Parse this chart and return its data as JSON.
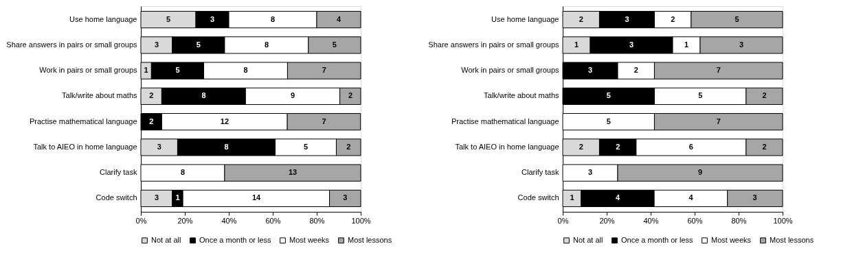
{
  "chart_data": [
    {
      "type": "bar",
      "orientation": "horizontal",
      "stacked": true,
      "legend": "bottom",
      "grid": false,
      "categories": [
        "Use home language",
        "Share answers in pairs or small groups",
        "Work in pairs or small groups",
        "Talk/write about maths",
        "Practise mathematical language",
        "Talk to AIEO in home language",
        "Clarify task",
        "Code switch"
      ],
      "xlim": [
        0,
        100
      ],
      "xticks": [
        {
          "value": 0,
          "label": "0%"
        },
        {
          "value": 20,
          "label": "20%"
        },
        {
          "value": 40,
          "label": "40%"
        },
        {
          "value": 60,
          "label": "60%"
        },
        {
          "value": 80,
          "label": "80%"
        },
        {
          "value": 100,
          "label": "100%"
        }
      ],
      "series": [
        {
          "name": "Not at all",
          "color": "#d9d9d9",
          "values": [
            25,
            14.3,
            4.8,
            9.5,
            0,
            16.7,
            0,
            14.3
          ]
        },
        {
          "name": "Once a month or less",
          "color": "#000000",
          "values": [
            15,
            23.8,
            23.8,
            38.1,
            9.5,
            44.4,
            0,
            4.8
          ]
        },
        {
          "name": "Most weeks",
          "color": "#ffffff",
          "values": [
            40,
            38.1,
            38.1,
            42.9,
            57.1,
            27.8,
            38.1,
            66.7
          ]
        },
        {
          "name": "Most lessons",
          "color": "#a6a6a6",
          "values": [
            20,
            23.8,
            33.3,
            9.5,
            33.3,
            11.1,
            61.9,
            14.2
          ]
        }
      ],
      "annotations": [
        {
          "text": "5",
          "x": 12.5,
          "y": "Use home language"
        },
        {
          "text": "3",
          "x": 32.5,
          "y": "Use home language"
        },
        {
          "text": "8",
          "x": 60,
          "y": "Use home language"
        },
        {
          "text": "4",
          "x": 90,
          "y": "Use home language"
        },
        {
          "text": "3",
          "x": 7.2,
          "y": "Share answers in pairs or small groups"
        },
        {
          "text": "5",
          "x": 26.2,
          "y": "Share answers in pairs or small groups"
        },
        {
          "text": "8",
          "x": 57.2,
          "y": "Share answers in pairs or small groups"
        },
        {
          "text": "5",
          "x": 88.1,
          "y": "Share answers in pairs or small groups"
        },
        {
          "text": "1",
          "x": 2.4,
          "y": "Work in pairs or small groups"
        },
        {
          "text": "5",
          "x": 16.7,
          "y": "Work in pairs or small groups"
        },
        {
          "text": "8",
          "x": 47.7,
          "y": "Work in pairs or small groups"
        },
        {
          "text": "7",
          "x": 83.4,
          "y": "Work in pairs or small groups"
        },
        {
          "text": "2",
          "x": 4.8,
          "y": "Talk/write about maths"
        },
        {
          "text": "8",
          "x": 28.6,
          "y": "Talk/write about maths"
        },
        {
          "text": "9",
          "x": 69.1,
          "y": "Talk/write about maths"
        },
        {
          "text": "2",
          "x": 95.3,
          "y": "Talk/write about maths"
        },
        {
          "text": "2",
          "x": 4.8,
          "y": "Practise mathematical language"
        },
        {
          "text": "12",
          "x": 38.1,
          "y": "Practise mathematical language"
        },
        {
          "text": "7",
          "x": 83.3,
          "y": "Practise mathematical language"
        },
        {
          "text": "3",
          "x": 8.4,
          "y": "Talk to AIEO in home language"
        },
        {
          "text": "8",
          "x": 38.9,
          "y": "Talk to AIEO in home language"
        },
        {
          "text": "5",
          "x": 75,
          "y": "Talk to AIEO in home language"
        },
        {
          "text": "2",
          "x": 94.5,
          "y": "Talk to AIEO in home language"
        },
        {
          "text": "8",
          "x": 19.1,
          "y": "Clarify task"
        },
        {
          "text": "13",
          "x": 69.1,
          "y": "Clarify task"
        },
        {
          "text": "3",
          "x": 7.2,
          "y": "Code switch"
        },
        {
          "text": "1",
          "x": 16.7,
          "y": "Code switch"
        },
        {
          "text": "14",
          "x": 52.5,
          "y": "Code switch"
        },
        {
          "text": "3",
          "x": 92.9,
          "y": "Code switch"
        }
      ]
    },
    {
      "type": "bar",
      "orientation": "horizontal",
      "stacked": true,
      "legend": "bottom",
      "grid": false,
      "categories": [
        "Use home language",
        "Share answers in pairs or small groups",
        "Work in pairs or small groups",
        "Talk/write about maths",
        "Practise mathematical language",
        "Talk to AIEO in home language",
        "Clarify task",
        "Code switch"
      ],
      "xlim": [
        0,
        100
      ],
      "xticks": [
        {
          "value": 0,
          "label": "0%"
        },
        {
          "value": 20,
          "label": "20%"
        },
        {
          "value": 40,
          "label": "40%"
        },
        {
          "value": 60,
          "label": "60%"
        },
        {
          "value": 80,
          "label": "80%"
        },
        {
          "value": 100,
          "label": "100%"
        }
      ],
      "series": [
        {
          "name": "Not at all",
          "color": "#d9d9d9",
          "values": [
            16.7,
            12.5,
            0,
            0,
            0,
            16.7,
            0,
            8.3
          ]
        },
        {
          "name": "Once a month or less",
          "color": "#000000",
          "values": [
            25,
            37.5,
            25,
            41.7,
            0,
            16.7,
            0,
            33.3
          ]
        },
        {
          "name": "Most weeks",
          "color": "#ffffff",
          "values": [
            16.7,
            12.5,
            16.7,
            41.7,
            41.7,
            50,
            25,
            33.3
          ]
        },
        {
          "name": "Most lessons",
          "color": "#a6a6a6",
          "values": [
            41.6,
            37.5,
            58.3,
            16.6,
            58.3,
            16.6,
            75,
            25.1
          ]
        }
      ],
      "annotations": [
        {
          "text": "2",
          "x": 8.4,
          "y": "Use home language"
        },
        {
          "text": "3",
          "x": 29.2,
          "y": "Use home language"
        },
        {
          "text": "2",
          "x": 50.1,
          "y": "Use home language"
        },
        {
          "text": "5",
          "x": 79.2,
          "y": "Use home language"
        },
        {
          "text": "1",
          "x": 6.3,
          "y": "Share answers in pairs or small groups"
        },
        {
          "text": "3",
          "x": 31.3,
          "y": "Share answers in pairs or small groups"
        },
        {
          "text": "1",
          "x": 56.3,
          "y": "Share answers in pairs or small groups"
        },
        {
          "text": "3",
          "x": 81.3,
          "y": "Share answers in pairs or small groups"
        },
        {
          "text": "3",
          "x": 12.5,
          "y": "Work in pairs or small groups"
        },
        {
          "text": "2",
          "x": 33.4,
          "y": "Work in pairs or small groups"
        },
        {
          "text": "7",
          "x": 70.9,
          "y": "Work in pairs or small groups"
        },
        {
          "text": "5",
          "x": 20.9,
          "y": "Talk/write about maths"
        },
        {
          "text": "5",
          "x": 62.6,
          "y": "Talk/write about maths"
        },
        {
          "text": "2",
          "x": 91.7,
          "y": "Talk/write about maths"
        },
        {
          "text": "5",
          "x": 20.9,
          "y": "Practise mathematical language"
        },
        {
          "text": "7",
          "x": 70.9,
          "y": "Practise mathematical language"
        },
        {
          "text": "2",
          "x": 8.4,
          "y": "Talk to AIEO in home language"
        },
        {
          "text": "2",
          "x": 25.1,
          "y": "Talk to AIEO in home language"
        },
        {
          "text": "6",
          "x": 58.4,
          "y": "Talk to AIEO in home language"
        },
        {
          "text": "2",
          "x": 91.7,
          "y": "Talk to AIEO in home language"
        },
        {
          "text": "3",
          "x": 12.5,
          "y": "Clarify task"
        },
        {
          "text": "9",
          "x": 62.5,
          "y": "Clarify task"
        },
        {
          "text": "1",
          "x": 4.2,
          "y": "Code switch"
        },
        {
          "text": "4",
          "x": 25,
          "y": "Code switch"
        },
        {
          "text": "4",
          "x": 58.3,
          "y": "Code switch"
        },
        {
          "text": "3",
          "x": 87.4,
          "y": "Code switch"
        }
      ]
    }
  ]
}
